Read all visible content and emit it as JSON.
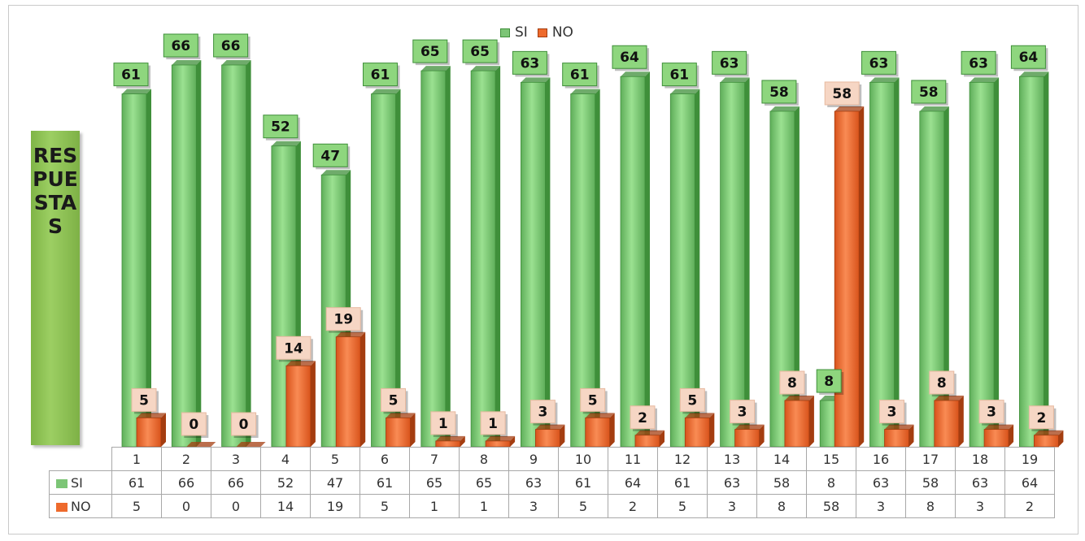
{
  "colors": {
    "si": "#7cc576",
    "si_dark": "#3f8f3a",
    "no": "#ee6a2c",
    "no_dark": "#a43d10",
    "si_label_bg": "#8ed67e",
    "no_label_bg": "#f6d6c4"
  },
  "y_axis_label": "RESPUESTAS",
  "legend": {
    "si": "SI",
    "no": "NO"
  },
  "chart_data": {
    "type": "bar",
    "title": "",
    "categories": [
      "1",
      "2",
      "3",
      "4",
      "5",
      "6",
      "7",
      "8",
      "9",
      "10",
      "11",
      "12",
      "13",
      "14",
      "15",
      "16",
      "17",
      "18",
      "19"
    ],
    "series": [
      {
        "name": "SI",
        "values": [
          61,
          66,
          66,
          52,
          47,
          61,
          65,
          65,
          63,
          61,
          64,
          61,
          63,
          58,
          8,
          63,
          58,
          63,
          64
        ]
      },
      {
        "name": "NO",
        "values": [
          5,
          0,
          0,
          14,
          19,
          5,
          1,
          1,
          3,
          5,
          2,
          5,
          3,
          8,
          58,
          3,
          8,
          3,
          2
        ]
      }
    ],
    "ylim": [
      0,
      66
    ],
    "grid": false,
    "legend_position": "top-center",
    "data_table": true
  }
}
